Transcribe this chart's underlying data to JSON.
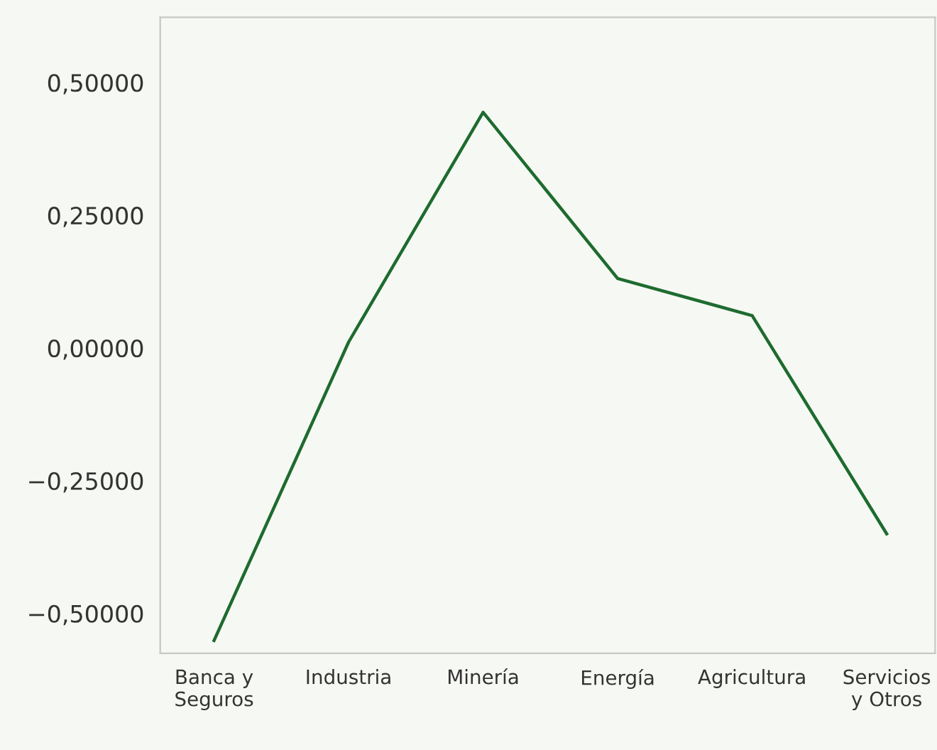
{
  "chart_data": {
    "type": "line",
    "categories": [
      "Banca y\nSeguros",
      "Industria",
      "Minería",
      "Energía",
      "Agricultura",
      "Servicios\ny Otros"
    ],
    "series": [
      {
        "color": "#1e6b2f",
        "values": [
          -0.551,
          0.011,
          0.444,
          0.131,
          0.061,
          -0.35
        ]
      }
    ],
    "ylim": [
      -0.575,
      0.623
    ],
    "yticks": [
      {
        "value": -0.5,
        "label": "−0,50000"
      },
      {
        "value": -0.25,
        "label": "−0,25000"
      },
      {
        "value": 0,
        "label": "0,00000"
      },
      {
        "value": 0.25,
        "label": "0,25000"
      },
      {
        "value": 0.5,
        "label": "0,50000"
      }
    ],
    "grid": false,
    "legend": false,
    "marker": "none",
    "line_style": "solid"
  }
}
